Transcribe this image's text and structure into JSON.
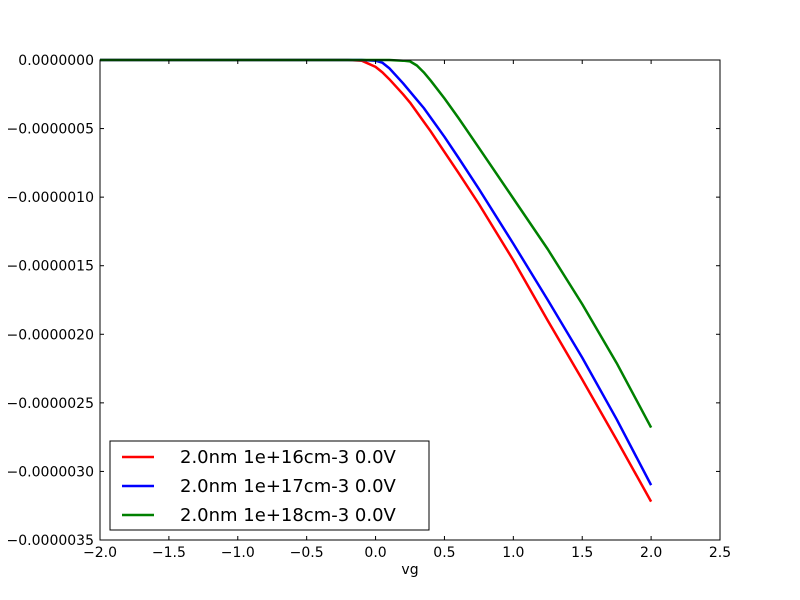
{
  "chart_data": {
    "type": "line",
    "title": "",
    "xlabel": "vg",
    "ylabel": "",
    "xlim": [
      -2.0,
      2.5
    ],
    "ylim": [
      -3.5e-06,
      0.0
    ],
    "grid": false,
    "legend_position": "lower-left",
    "x_ticks": [
      -2.0,
      -1.5,
      -1.0,
      -0.5,
      0.0,
      0.5,
      1.0,
      1.5,
      2.0,
      2.5
    ],
    "x_tick_labels": [
      "−2.0",
      "−1.5",
      "−1.0",
      "−0.5",
      "0.0",
      "0.5",
      "1.0",
      "1.5",
      "2.0",
      "2.5"
    ],
    "y_ticks": [
      0.0,
      -5e-07,
      -1e-06,
      -1.5e-06,
      -2e-06,
      -2.5e-06,
      -3e-06,
      -3.5e-06
    ],
    "y_tick_labels": [
      "0.0000000",
      "−0.0000005",
      "−0.0000010",
      "−0.0000015",
      "−0.0000020",
      "−0.0000025",
      "−0.0000030",
      "−0.0000035"
    ],
    "x": [
      -2.0,
      -0.3,
      -0.2,
      -0.1,
      0.0,
      0.05,
      0.1,
      0.2,
      0.25,
      0.3,
      0.35,
      0.4,
      0.5,
      0.6,
      0.75,
      1.0,
      1.25,
      1.5,
      1.75,
      2.0
    ],
    "series": [
      {
        "name": "2.0nm 1e+16cm-3 0.0V",
        "color": "#ff0000",
        "values": [
          0.0,
          0.0,
          0.0,
          -5e-09,
          -5e-08,
          -9e-08,
          -1.4e-07,
          -2.5e-07,
          -3.1e-07,
          -3.8e-07,
          -4.5e-07,
          -5.2e-07,
          -6.7e-07,
          -8.2e-07,
          -1.05e-06,
          -1.46e-06,
          -1.9e-06,
          -2.33e-06,
          -2.77e-06,
          -3.22e-06
        ]
      },
      {
        "name": "2.0nm 1e+17cm-3 0.0V",
        "color": "#0000ff",
        "values": [
          0.0,
          0.0,
          0.0,
          0.0,
          -5e-09,
          -2e-08,
          -6e-08,
          -1.7e-07,
          -2.3e-07,
          -2.9e-07,
          -3.5e-07,
          -4.2e-07,
          -5.6e-07,
          -7.1e-07,
          -9.4e-07,
          -1.34e-06,
          -1.75e-06,
          -2.17e-06,
          -2.62e-06,
          -3.1e-06
        ]
      },
      {
        "name": "2.0nm 1e+18cm-3 0.0V",
        "color": "#008000",
        "values": [
          0.0,
          0.0,
          0.0,
          0.0,
          0.0,
          0.0,
          0.0,
          -5e-09,
          -1e-08,
          -4e-08,
          -9e-08,
          -1.5e-07,
          -2.8e-07,
          -4.2e-07,
          -6.4e-07,
          -1.01e-06,
          -1.38e-06,
          -1.78e-06,
          -2.21e-06,
          -2.68e-06
        ]
      }
    ]
  }
}
